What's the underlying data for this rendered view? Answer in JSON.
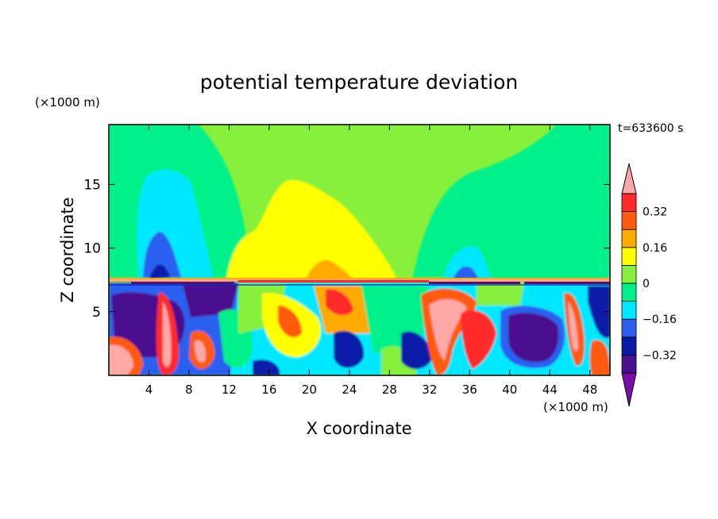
{
  "chart_data": {
    "type": "heatmap",
    "title": "potential temperature deviation",
    "xlabel": "X coordinate",
    "ylabel": "Z coordinate",
    "x_unit": "(×1000 m)",
    "y_unit": "(×1000 m)",
    "time_label": "t=633600 s",
    "xlim": [
      0,
      50
    ],
    "ylim": [
      0,
      19.7
    ],
    "x_ticks": [
      4,
      8,
      12,
      16,
      20,
      24,
      28,
      32,
      36,
      40,
      44,
      48
    ],
    "y_ticks": [
      5,
      10,
      15
    ],
    "colorbar": {
      "levels": [
        -0.4,
        -0.32,
        -0.24,
        -0.16,
        -0.08,
        0,
        0.08,
        0.16,
        0.24,
        0.32,
        0.4
      ],
      "tick_labels": [
        "−0.32",
        "−0.16",
        "0",
        "0.16",
        "0.32"
      ],
      "tick_values": [
        -0.32,
        -0.16,
        0,
        0.16,
        0.32
      ],
      "colors": [
        "#7a0fa8",
        "#4b108f",
        "#0a1aa8",
        "#2a60f0",
        "#00e8ff",
        "#00f08a",
        "#86f03c",
        "#ffff00",
        "#ffaa00",
        "#ff5a10",
        "#ff2a2a",
        "#ffa8a8"
      ],
      "extend": "both"
    }
  }
}
